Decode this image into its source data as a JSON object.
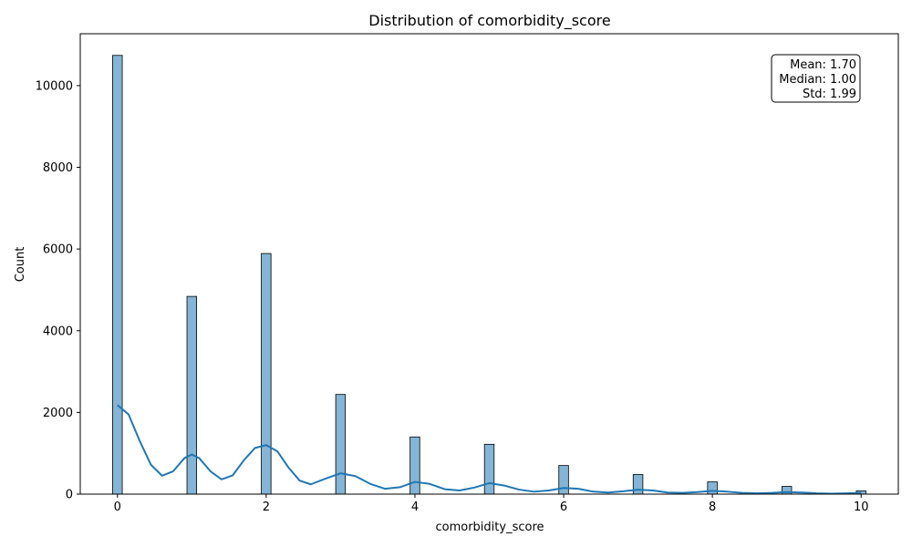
{
  "chart_data": {
    "type": "bar",
    "title": "Distribution of comorbidity_score",
    "xlabel": "comorbidity_score",
    "ylabel": "Count",
    "xlim": [
      -0.5,
      10.5
    ],
    "ylim": [
      0,
      11270
    ],
    "x_ticks": [
      0,
      2,
      4,
      6,
      8,
      10
    ],
    "y_ticks": [
      0,
      2000,
      4000,
      6000,
      8000,
      10000
    ],
    "grid": false,
    "bar_color": "#1f77b4",
    "bars": [
      {
        "x": 0,
        "value": 10740
      },
      {
        "x": 1,
        "value": 4840
      },
      {
        "x": 2,
        "value": 5890
      },
      {
        "x": 3,
        "value": 2440
      },
      {
        "x": 4,
        "value": 1400
      },
      {
        "x": 5,
        "value": 1220
      },
      {
        "x": 6,
        "value": 700
      },
      {
        "x": 7,
        "value": 480
      },
      {
        "x": 8,
        "value": 300
      },
      {
        "x": 9,
        "value": 190
      },
      {
        "x": 10,
        "value": 80
      }
    ],
    "kde_line": {
      "x": [
        0,
        0.15,
        0.3,
        0.45,
        0.6,
        0.75,
        0.9,
        1.0,
        1.1,
        1.25,
        1.4,
        1.55,
        1.7,
        1.85,
        2.0,
        2.15,
        2.3,
        2.45,
        2.6,
        2.8,
        3.0,
        3.2,
        3.4,
        3.6,
        3.8,
        4.0,
        4.2,
        4.4,
        4.6,
        4.8,
        5.0,
        5.2,
        5.4,
        5.6,
        5.8,
        6.0,
        6.2,
        6.4,
        6.6,
        6.8,
        7.0,
        7.2,
        7.4,
        7.6,
        7.8,
        8.0,
        8.2,
        8.4,
        8.6,
        8.8,
        9.0,
        9.2,
        9.4,
        9.6,
        9.8,
        10.0
      ],
      "y": [
        2180,
        1950,
        1300,
        720,
        450,
        560,
        880,
        970,
        880,
        560,
        360,
        460,
        830,
        1130,
        1200,
        1050,
        650,
        330,
        240,
        380,
        510,
        440,
        250,
        130,
        170,
        300,
        250,
        120,
        90,
        160,
        270,
        210,
        110,
        60,
        90,
        150,
        130,
        60,
        40,
        70,
        110,
        90,
        40,
        30,
        50,
        80,
        60,
        30,
        20,
        30,
        50,
        40,
        20,
        10,
        20,
        30
      ]
    },
    "stats_box": {
      "lines": [
        "Mean: 1.70",
        "Median: 1.00",
        "Std: 1.99"
      ],
      "placement": "top-right"
    }
  }
}
